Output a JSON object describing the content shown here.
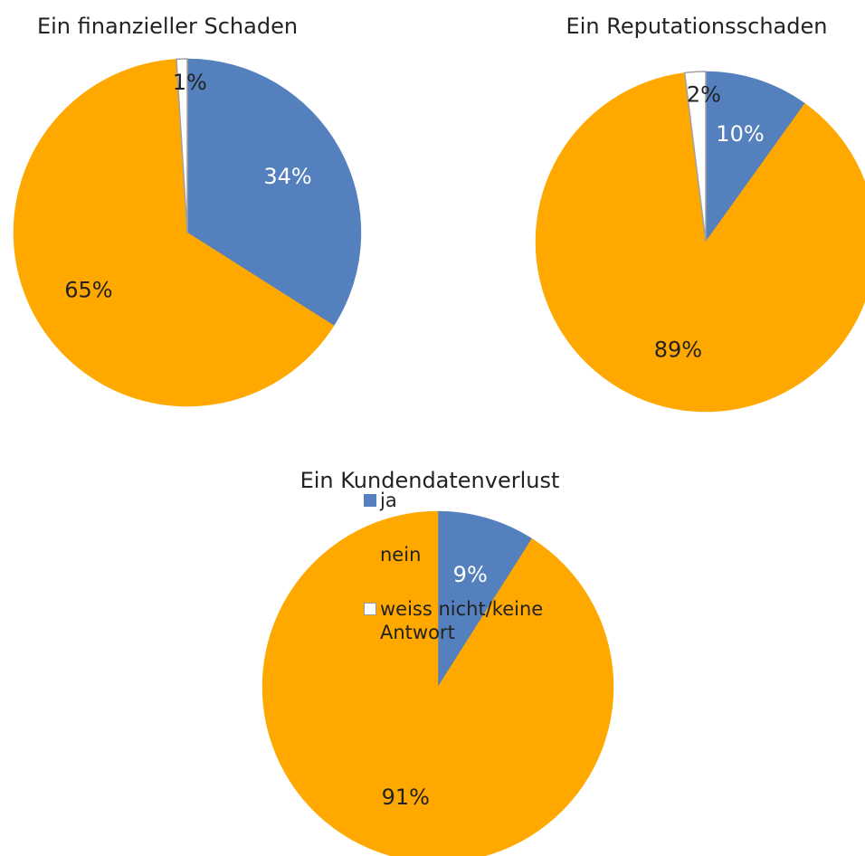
{
  "chart_data": [
    {
      "type": "pie",
      "title": "Ein finanzieller Schaden",
      "categories": [
        "ja",
        "nein",
        "weiss nicht/keine Antwort"
      ],
      "colors": [
        "#5580be",
        "#ffa800",
        "#ffffff"
      ],
      "legend": "left",
      "values": [
        34,
        65,
        1
      ],
      "value_labels": [
        "34%",
        "65%",
        "1%"
      ]
    },
    {
      "type": "pie",
      "title": "Ein Reputationsschaden",
      "values": [
        10,
        89,
        2
      ],
      "value_labels": [
        "10%",
        "89%",
        "2%"
      ]
    },
    {
      "type": "pie",
      "title": "Ein Kundendatenverlust",
      "values": [
        9,
        91
      ],
      "value_labels": [
        "9%",
        "91%"
      ]
    }
  ]
}
